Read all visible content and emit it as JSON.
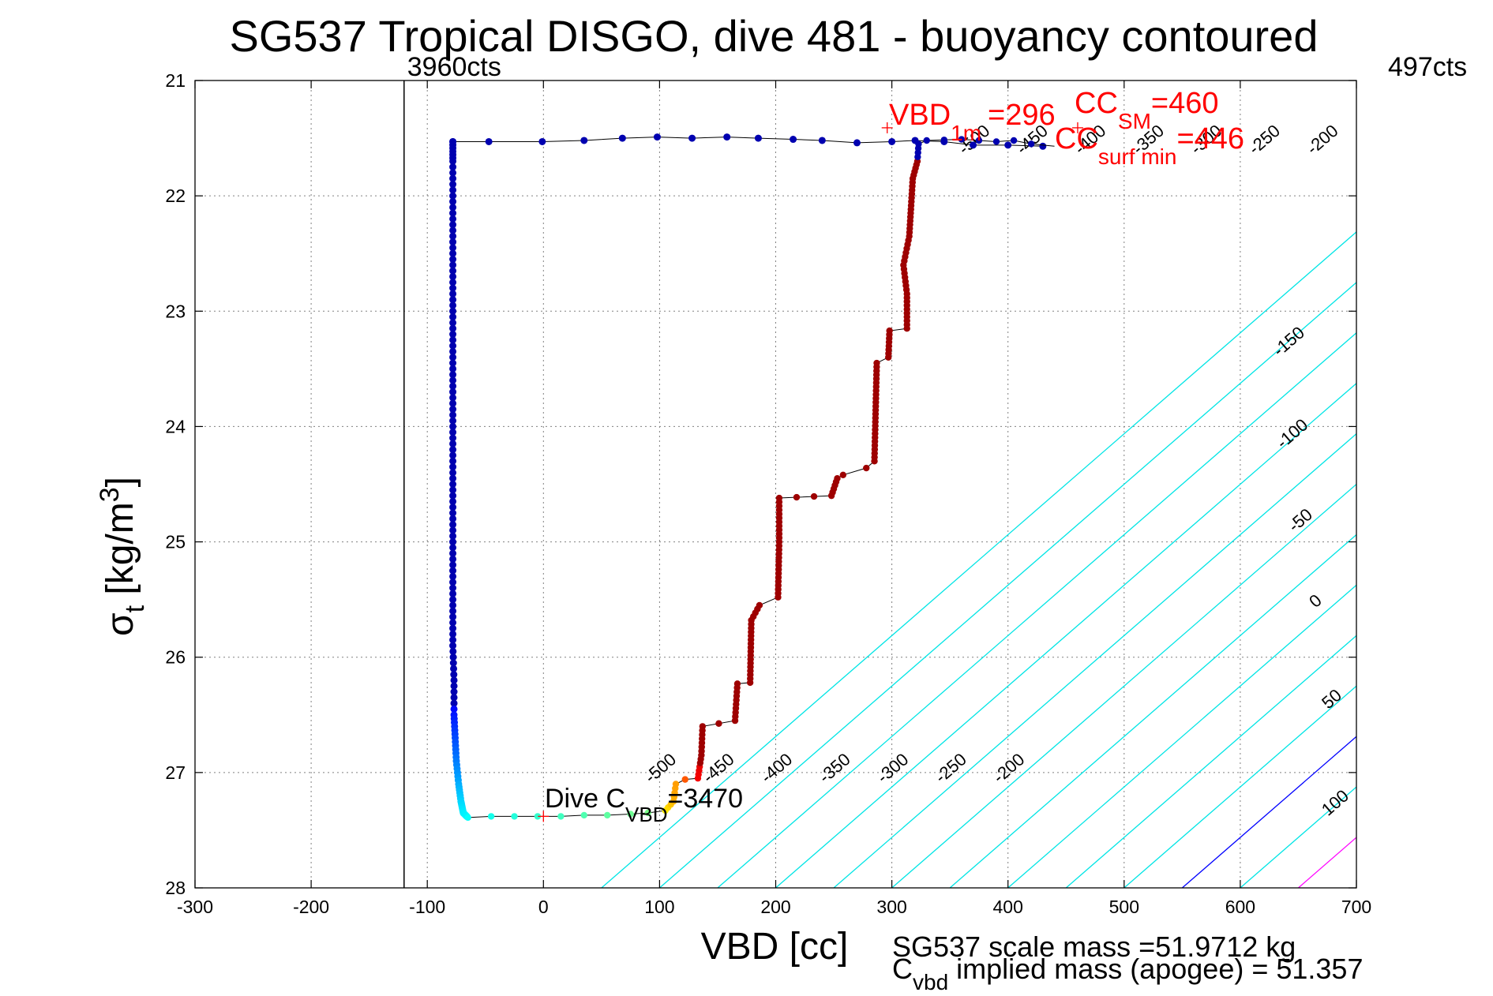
{
  "chart_data": {
    "type": "scatter",
    "title": "SG537 Tropical DISGO, dive 481 - buoyancy contoured",
    "xlabel": "VBD [cc]",
    "ylabel_main": "σ",
    "ylabel_sub": "t",
    "ylabel_unit": "[kg/m",
    "ylabel_sup": "3",
    "ylabel_close": "]",
    "xlim": [
      -300,
      700
    ],
    "ylim": [
      21,
      28
    ],
    "y_reversed": true,
    "grid": true,
    "x_ticks": [
      "-300",
      "-200",
      "-100",
      "0",
      "100",
      "200",
      "300",
      "400",
      "500",
      "600",
      "700"
    ],
    "y_ticks": [
      "21",
      "22",
      "23",
      "24",
      "25",
      "26",
      "27",
      "28"
    ],
    "counts_lines": [
      {
        "label": "3960cts",
        "x": -120
      },
      {
        "label": "497cts",
        "x": 700
      }
    ],
    "contour_offset_cc_per_sigma": 114.3,
    "contours": [
      {
        "level": -500,
        "x_at_28": 50,
        "color": "#00e5e5",
        "label": "-500",
        "label_pos": [
          104,
          27.0
        ]
      },
      {
        "level": -450,
        "x_at_28": 100,
        "color": "#00e5e5",
        "label": "-450",
        "label_pos": [
          154,
          27.0
        ]
      },
      {
        "level": -400,
        "x_at_28": 150,
        "color": "#00e5e5",
        "label": "-400",
        "label_pos": [
          204,
          27.0
        ]
      },
      {
        "level": -350,
        "x_at_28": 200,
        "color": "#00e5e5",
        "label": "-350",
        "label_pos": [
          254,
          27.0
        ]
      },
      {
        "level": -300,
        "x_at_28": 250,
        "color": "#00e5e5",
        "label": "-300",
        "label_pos": [
          304,
          27.0
        ]
      },
      {
        "level": -250,
        "x_at_28": 300,
        "color": "#00e5e5",
        "label": "-250",
        "label_pos": [
          354,
          27.0
        ]
      },
      {
        "level": -200,
        "x_at_28": 350,
        "color": "#00e5e5",
        "label": "-200",
        "label_pos": [
          404,
          27.0
        ]
      },
      {
        "level": -150,
        "x_at_28": 400,
        "color": "#00e5e5",
        "label": "-150",
        "label_pos": [
          645,
          23.3
        ]
      },
      {
        "level": -100,
        "x_at_28": 450,
        "color": "#00e5e5",
        "label": "-100",
        "label_pos": [
          648,
          24.1
        ]
      },
      {
        "level": -50,
        "x_at_28": 500,
        "color": "#00e5e5",
        "label": "-50",
        "label_pos": [
          655,
          24.85
        ]
      },
      {
        "level": 0,
        "x_at_28": 550,
        "color": "#0000ff",
        "label": "0",
        "label_pos": [
          668,
          25.55
        ]
      },
      {
        "level": 50,
        "x_at_28": 600,
        "color": "#00e5e5",
        "label": "50",
        "label_pos": [
          682,
          26.4
        ]
      },
      {
        "level": 100,
        "x_at_28": 650,
        "color": "#ff00ff",
        "label": "100",
        "label_pos": [
          685,
          27.3
        ]
      },
      {
        "level": -200,
        "x_at_28": 350,
        "color": "#00e5e5",
        "label": "-200",
        "label_pos": [
          674,
          21.55
        ]
      },
      {
        "level": -250,
        "x_at_28": 300,
        "color": "#00e5e5",
        "label": "-250",
        "label_pos": [
          624,
          21.55
        ]
      },
      {
        "level": -300,
        "x_at_28": 250,
        "color": "#00e5e5",
        "label": "-300",
        "label_pos": [
          574,
          21.55
        ]
      },
      {
        "level": -350,
        "x_at_28": 200,
        "color": "#00e5e5",
        "label": "-350",
        "label_pos": [
          524,
          21.55
        ]
      },
      {
        "level": -400,
        "x_at_28": 150,
        "color": "#00e5e5",
        "label": "-400",
        "label_pos": [
          474,
          21.55
        ]
      },
      {
        "level": -450,
        "x_at_28": 100,
        "color": "#00e5e5",
        "label": "-450",
        "label_pos": [
          424,
          21.55
        ]
      },
      {
        "level": -500,
        "x_at_28": 50,
        "color": "#00e5e5",
        "label": "-500",
        "label_pos": [
          374,
          21.55
        ]
      }
    ],
    "dive_profile": {
      "points": [
        [
          -78,
          21.53
        ],
        [
          -78,
          21.7
        ],
        [
          -78,
          22.0
        ],
        [
          -78,
          22.3
        ],
        [
          -78,
          22.6
        ],
        [
          -78,
          22.9
        ],
        [
          -78,
          23.2
        ],
        [
          -78,
          23.5
        ],
        [
          -78,
          23.8
        ],
        [
          -78,
          24.1
        ],
        [
          -78,
          24.4
        ],
        [
          -78,
          24.7
        ],
        [
          -78,
          25.0
        ],
        [
          -78,
          25.3
        ],
        [
          -78,
          25.6
        ],
        [
          -78,
          25.9
        ],
        [
          -77,
          26.2
        ],
        [
          -77,
          26.5
        ],
        [
          -76,
          26.7
        ],
        [
          -75,
          26.9
        ],
        [
          -73,
          27.1
        ],
        [
          -71,
          27.25
        ],
        [
          -69,
          27.35
        ],
        [
          -65,
          27.39
        ]
      ],
      "color": "#0000b0"
    },
    "climb_profile": {
      "points": [
        [
          -65,
          27.39
        ],
        [
          -45,
          27.38
        ],
        [
          -25,
          27.38
        ],
        [
          -5,
          27.38
        ],
        [
          15,
          27.38
        ],
        [
          35,
          27.37
        ],
        [
          55,
          27.37
        ],
        [
          75,
          27.36
        ],
        [
          90,
          27.35
        ],
        [
          105,
          27.33
        ],
        [
          112,
          27.25
        ],
        [
          114,
          27.1
        ],
        [
          122,
          27.06
        ],
        [
          133,
          27.05
        ],
        [
          136,
          26.85
        ],
        [
          137,
          26.6
        ],
        [
          165,
          26.55
        ],
        [
          167,
          26.23
        ],
        [
          178,
          26.22
        ],
        [
          179,
          25.68
        ],
        [
          186,
          25.55
        ],
        [
          202,
          25.48
        ],
        [
          203,
          25.0
        ],
        [
          203,
          24.62
        ],
        [
          248,
          24.6
        ],
        [
          253,
          24.45
        ],
        [
          258,
          24.42
        ],
        [
          278,
          24.36
        ],
        [
          285,
          24.3
        ],
        [
          287,
          23.45
        ],
        [
          297,
          23.4
        ],
        [
          298,
          23.17
        ],
        [
          313,
          23.15
        ],
        [
          313,
          22.85
        ],
        [
          310,
          22.6
        ],
        [
          315,
          22.35
        ],
        [
          318,
          21.85
        ],
        [
          322,
          21.7
        ],
        [
          323,
          21.55
        ],
        [
          330,
          21.52
        ],
        [
          360,
          21.51
        ],
        [
          390,
          21.53
        ],
        [
          405,
          21.52
        ],
        [
          420,
          21.55
        ],
        [
          440,
          21.57
        ]
      ],
      "surface_points": [
        [
          -78,
          21.53
        ],
        [
          -47,
          21.53
        ],
        [
          -1,
          21.53
        ],
        [
          35,
          21.52
        ],
        [
          68,
          21.5
        ],
        [
          98,
          21.49
        ],
        [
          128,
          21.5
        ],
        [
          158,
          21.49
        ],
        [
          185,
          21.5
        ],
        [
          215,
          21.51
        ],
        [
          240,
          21.52
        ],
        [
          270,
          21.54
        ],
        [
          300,
          21.53
        ],
        [
          320,
          21.52
        ],
        [
          345,
          21.53
        ],
        [
          370,
          21.56
        ],
        [
          400,
          21.56
        ],
        [
          430,
          21.57
        ]
      ]
    },
    "annotations": {
      "dive_cvbd": {
        "main": "Dive C",
        "sub": "VBD",
        "tail": "=3470",
        "x": 0,
        "y": 27.38
      },
      "vbd_1m": {
        "main": "VBD",
        "sub": "1m",
        "tail": "=296",
        "x": 296,
        "y": 21.41
      },
      "cc_sm": {
        "main": "CC",
        "sub": "SM",
        "tail": "=460",
        "x": 460,
        "y": 21.41
      },
      "cc_surf_min": {
        "main": "CC",
        "sub": "surf min",
        "tail": "=446",
        "x": 446,
        "y": 21.55
      }
    },
    "bottom_notes": {
      "scale_mass": "SG537 scale mass =51.9712 kg",
      "cvbd_main": "C",
      "cvbd_sub": "vbd",
      "cvbd_tail": " implied mass (apogee) = 51.357"
    }
  },
  "colors": {
    "contour": "#00e5e5",
    "contour_zero": "#0000ff",
    "contour_100": "#ff00ff",
    "grid": "#808080",
    "annotation_red": "#ff0000"
  }
}
